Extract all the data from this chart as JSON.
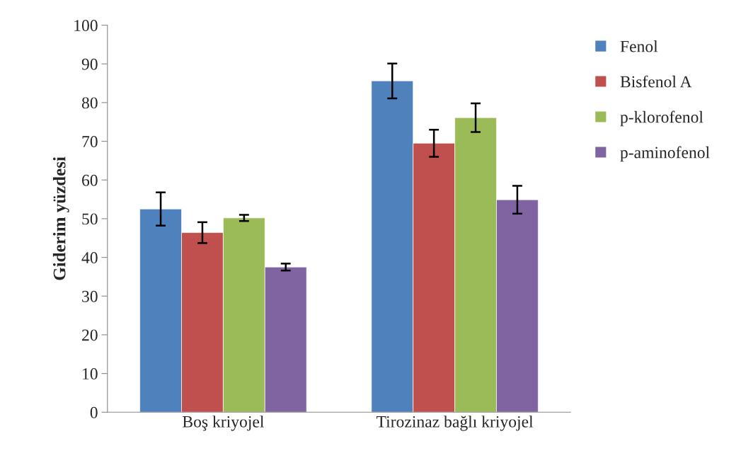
{
  "chart_data": {
    "type": "bar",
    "ylabel": "Giderim yüzdesi",
    "categories": [
      "Boş kriyojel",
      "Tirozinaz bağlı kriyojel"
    ],
    "series": [
      {
        "name": "Fenol",
        "color": "#4f81bd",
        "values": [
          52.5,
          85.6
        ],
        "errors": [
          4.3,
          4.5
        ]
      },
      {
        "name": "Bisfenol A",
        "color": "#c0504d",
        "values": [
          46.4,
          69.5
        ],
        "errors": [
          2.7,
          3.5
        ]
      },
      {
        "name": "p-klorofenol",
        "color": "#9bbb59",
        "values": [
          50.2,
          76.1
        ],
        "errors": [
          0.8,
          3.7
        ]
      },
      {
        "name": "p-aminofenol",
        "color": "#8064a2",
        "values": [
          37.5,
          54.9
        ],
        "errors": [
          0.9,
          3.6
        ]
      }
    ],
    "ylim": [
      0,
      100
    ],
    "yticks": [
      0,
      10,
      20,
      30,
      40,
      50,
      60,
      70,
      80,
      90,
      100
    ],
    "grid": false,
    "legend": "right"
  }
}
